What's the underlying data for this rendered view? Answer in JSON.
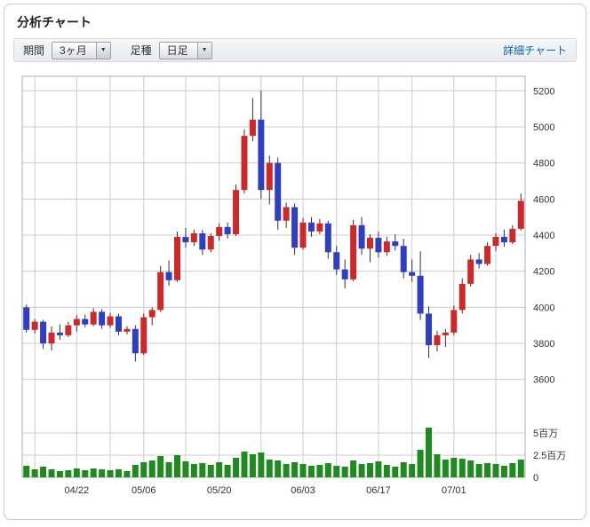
{
  "page": {
    "title": "分析チャート"
  },
  "toolbar": {
    "period_label": "期間",
    "period_value": "3ヶ月",
    "bar_type_label": "足種",
    "bar_type_value": "日足",
    "dropdown_arrow": "▼",
    "detail_link": "詳細チャート"
  },
  "chart_data": {
    "type": "candlestick_with_volume",
    "title": "分析チャート",
    "period": "3ヶ月",
    "interval": "日足",
    "legend_position": "none",
    "grid": true,
    "price_axis": {
      "side": "right",
      "ticks": [
        3600,
        3800,
        4000,
        4200,
        4400,
        4600,
        4800,
        5000,
        5200
      ],
      "range": [
        3520,
        5280
      ]
    },
    "volume_axis": {
      "side": "right",
      "unit": "百万",
      "max_millions": 6.2,
      "ticks": [
        {
          "value": 0,
          "label": "0"
        },
        {
          "value": 2.5,
          "label": "2.5百万"
        },
        {
          "value": 5,
          "label": "5百万"
        }
      ]
    },
    "x_axis": {
      "labels": [
        {
          "index": 6,
          "label": "04/22"
        },
        {
          "index": 14,
          "label": "05/06"
        },
        {
          "index": 23,
          "label": "05/20"
        },
        {
          "index": 33,
          "label": "06/03"
        },
        {
          "index": 42,
          "label": "06/17"
        },
        {
          "index": 51,
          "label": "07/01"
        }
      ],
      "gridline_indices": [
        1,
        6,
        10,
        14,
        19,
        23,
        28,
        33,
        37,
        42,
        46,
        51,
        56
      ]
    },
    "colors": {
      "up": "#cc2a2a",
      "down": "#2f3fbe",
      "volume": "#1f8a1f",
      "grid": "#cccccc",
      "frame": "#a8adb3",
      "wick": "#333333",
      "axis_text": "#333333"
    },
    "candle_format": [
      "open",
      "high",
      "low",
      "close",
      "volume_millions"
    ],
    "candles": [
      [
        4000,
        4015,
        3860,
        3875,
        1.3
      ],
      [
        3875,
        3935,
        3855,
        3920,
        0.9
      ],
      [
        3920,
        3930,
        3770,
        3800,
        1.2
      ],
      [
        3800,
        3895,
        3760,
        3860,
        0.9
      ],
      [
        3860,
        3905,
        3820,
        3845,
        0.7
      ],
      [
        3845,
        3920,
        3835,
        3900,
        0.8
      ],
      [
        3900,
        3955,
        3865,
        3935,
        1.0
      ],
      [
        3935,
        3960,
        3890,
        3905,
        0.8
      ],
      [
        3905,
        3995,
        3895,
        3975,
        1.0
      ],
      [
        3975,
        3990,
        3880,
        3900,
        0.9
      ],
      [
        3900,
        3970,
        3885,
        3950,
        0.8
      ],
      [
        3950,
        3965,
        3845,
        3865,
        0.9
      ],
      [
        3865,
        3895,
        3850,
        3880,
        0.7
      ],
      [
        3880,
        3900,
        3700,
        3745,
        1.4
      ],
      [
        3745,
        3965,
        3735,
        3945,
        1.7
      ],
      [
        3945,
        4000,
        3900,
        3985,
        1.9
      ],
      [
        3985,
        4230,
        3975,
        4195,
        2.4
      ],
      [
        4195,
        4260,
        4120,
        4150,
        1.7
      ],
      [
        4150,
        4420,
        4140,
        4390,
        2.5
      ],
      [
        4390,
        4440,
        4330,
        4360,
        1.8
      ],
      [
        4360,
        4430,
        4340,
        4410,
        1.5
      ],
      [
        4410,
        4430,
        4290,
        4320,
        1.6
      ],
      [
        4320,
        4410,
        4305,
        4395,
        1.4
      ],
      [
        4395,
        4465,
        4370,
        4445,
        1.7
      ],
      [
        4445,
        4470,
        4380,
        4405,
        1.4
      ],
      [
        4405,
        4680,
        4395,
        4650,
        2.2
      ],
      [
        4650,
        4985,
        4630,
        4950,
        2.9
      ],
      [
        4950,
        5160,
        4920,
        5040,
        2.6
      ],
      [
        5040,
        5200,
        4600,
        4650,
        2.8
      ],
      [
        4650,
        4840,
        4570,
        4800,
        2.0
      ],
      [
        4800,
        4830,
        4430,
        4480,
        1.9
      ],
      [
        4480,
        4580,
        4440,
        4555,
        1.5
      ],
      [
        4555,
        4575,
        4290,
        4330,
        1.7
      ],
      [
        4330,
        4495,
        4320,
        4470,
        1.5
      ],
      [
        4470,
        4500,
        4390,
        4420,
        1.3
      ],
      [
        4420,
        4490,
        4405,
        4465,
        1.4
      ],
      [
        4465,
        4480,
        4270,
        4305,
        1.6
      ],
      [
        4305,
        4340,
        4180,
        4210,
        1.3
      ],
      [
        4210,
        4265,
        4105,
        4155,
        1.2
      ],
      [
        4155,
        4485,
        4145,
        4455,
        1.9
      ],
      [
        4455,
        4500,
        4290,
        4325,
        1.5
      ],
      [
        4325,
        4405,
        4250,
        4385,
        1.6
      ],
      [
        4385,
        4420,
        4275,
        4305,
        1.8
      ],
      [
        4305,
        4390,
        4285,
        4365,
        1.4
      ],
      [
        4365,
        4405,
        4315,
        4340,
        1.2
      ],
      [
        4340,
        4380,
        4160,
        4195,
        1.7
      ],
      [
        4195,
        4265,
        4140,
        4175,
        1.5
      ],
      [
        4175,
        4310,
        3930,
        3965,
        3.1
      ],
      [
        3965,
        4005,
        3720,
        3790,
        5.6
      ],
      [
        3790,
        3870,
        3755,
        3845,
        2.6
      ],
      [
        3845,
        3880,
        3780,
        3860,
        2.0
      ],
      [
        3860,
        4010,
        3845,
        3985,
        2.2
      ],
      [
        3985,
        4160,
        3965,
        4130,
        2.1
      ],
      [
        4130,
        4290,
        4115,
        4265,
        1.9
      ],
      [
        4265,
        4300,
        4215,
        4240,
        1.5
      ],
      [
        4240,
        4360,
        4230,
        4340,
        1.6
      ],
      [
        4340,
        4410,
        4310,
        4390,
        1.5
      ],
      [
        4390,
        4430,
        4335,
        4360,
        1.3
      ],
      [
        4360,
        4455,
        4350,
        4435,
        1.6
      ],
      [
        4435,
        4630,
        4425,
        4590,
        2.0
      ]
    ]
  }
}
